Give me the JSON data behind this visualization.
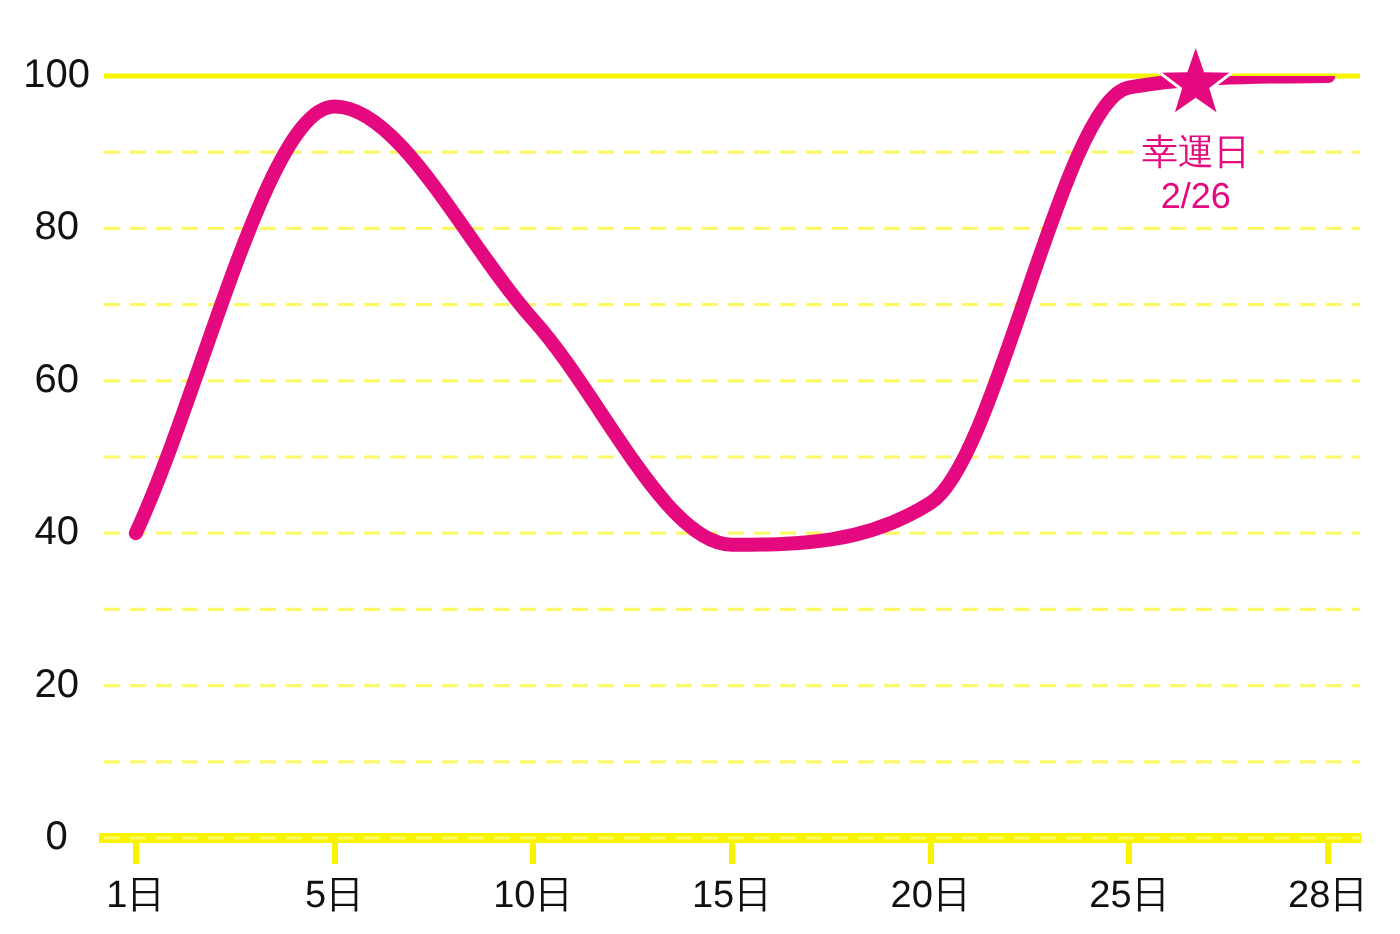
{
  "chart_data": {
    "type": "line",
    "categories": [
      "1日",
      "5日",
      "10日",
      "15日",
      "20日",
      "25日",
      "28日"
    ],
    "values": [
      40,
      96,
      68,
      38.5,
      44,
      98.5,
      100
    ],
    "color": "#e5097f",
    "ylim": [
      0,
      100
    ],
    "yticks": [
      0,
      {
        "value": 10,
        "label": null
      },
      20,
      {
        "value": 30,
        "label": null
      },
      40,
      {
        "value": 50,
        "label": null
      },
      60,
      {
        "value": 70,
        "label": null
      },
      80,
      {
        "value": 90,
        "label": null
      },
      100
    ],
    "grid": "y",
    "ref_lines": [
      {
        "axis": "y",
        "value": 100,
        "color": "#f5f500"
      }
    ],
    "annotations": [
      {
        "text": "幸運日\n2/26",
        "y": 99
      }
    ]
  }
}
